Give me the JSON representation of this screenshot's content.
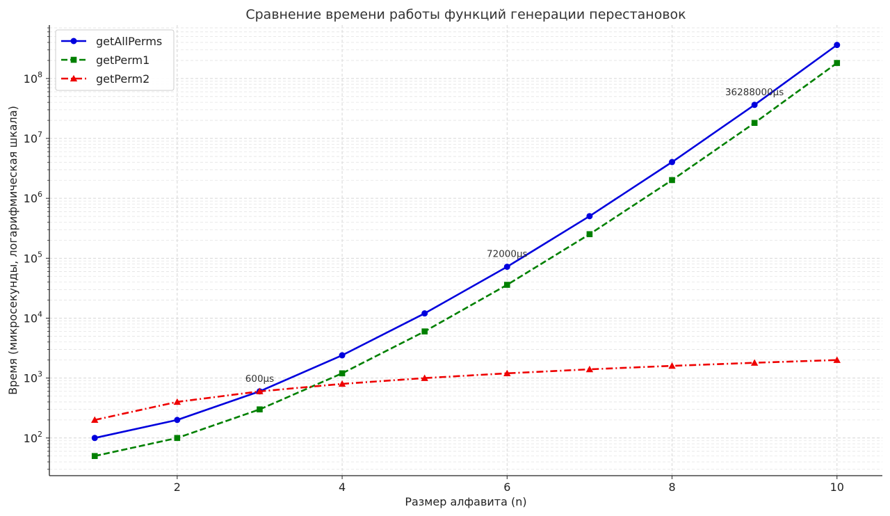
{
  "chart_data": {
    "type": "line",
    "title": "Сравнение времени работы функций генерации перестановок",
    "xlabel": "Размер алфавита (n)",
    "ylabel": "Время (микросекунды, логарифмическая шкала)",
    "yscale": "log",
    "xlim": [
      0.45,
      10.55
    ],
    "ylim": [
      23.5,
      780000000
    ],
    "x_ticks": [
      2,
      4,
      6,
      8,
      10
    ],
    "y_ticks": [
      {
        "value": 100,
        "base": "10",
        "exp": "2"
      },
      {
        "value": 1000,
        "base": "10",
        "exp": "3"
      },
      {
        "value": 10000,
        "base": "10",
        "exp": "4"
      },
      {
        "value": 100000,
        "base": "10",
        "exp": "5"
      },
      {
        "value": 1000000,
        "base": "10",
        "exp": "6"
      },
      {
        "value": 10000000,
        "base": "10",
        "exp": "7"
      },
      {
        "value": 100000000,
        "base": "10",
        "exp": "8"
      }
    ],
    "grid": true,
    "legend_position": "top-left",
    "x": [
      1,
      2,
      3,
      4,
      5,
      6,
      7,
      8,
      9,
      10
    ],
    "series": [
      {
        "name": "getAllPerms",
        "color": "#0000dd",
        "marker": "circle",
        "dash": "solid",
        "values": [
          100,
          200,
          600,
          2400,
          12000,
          72000,
          504000,
          4032000,
          36288000,
          362880000
        ]
      },
      {
        "name": "getPerm1",
        "color": "#008000",
        "marker": "square",
        "dash": "dashed",
        "values": [
          50,
          100,
          300,
          1200,
          6000,
          36000,
          252000,
          2016000,
          18144000,
          181440000
        ]
      },
      {
        "name": "getPerm2",
        "color": "#ee0000",
        "marker": "triangle",
        "dash": "dashdot",
        "values": [
          200,
          400,
          600,
          800,
          1000,
          1200,
          1400,
          1600,
          1800,
          2000
        ]
      }
    ],
    "annotations": [
      {
        "x": 3,
        "y": 600,
        "text": "600μs"
      },
      {
        "x": 6,
        "y": 72000,
        "text": "72000μs"
      },
      {
        "x": 9,
        "y": 36288000,
        "text": "36288000μs"
      }
    ]
  }
}
